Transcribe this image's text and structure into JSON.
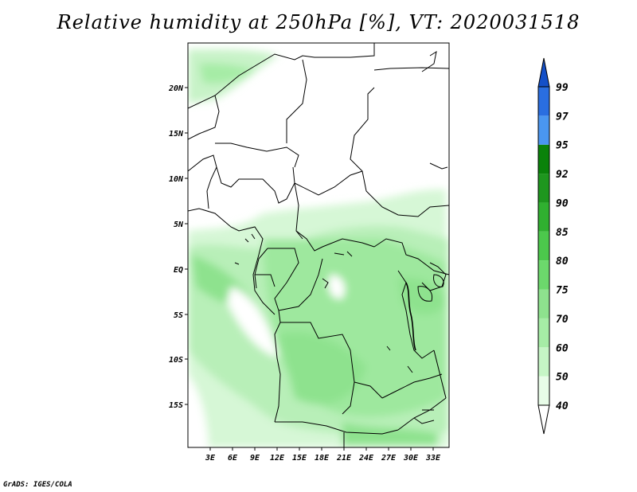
{
  "title": "Relative humidity at 250hPa [%], VT: 2020031518",
  "credit": "GrADS: IGES/COLA",
  "map": {
    "lat_ticks": [
      "20N",
      "15N",
      "10N",
      "5N",
      "EQ",
      "5S",
      "10S",
      "15S"
    ],
    "lon_ticks": [
      "3E",
      "6E",
      "9E",
      "12E",
      "15E",
      "18E",
      "21E",
      "24E",
      "27E",
      "30E",
      "33E"
    ]
  },
  "colorbar": {
    "levels": [
      "40",
      "50",
      "60",
      "70",
      "75",
      "80",
      "85",
      "90",
      "92",
      "95",
      "97",
      "99"
    ],
    "colors": [
      "#ffffff",
      "#e8fce8",
      "#c6f5c6",
      "#a6eca6",
      "#8ee28e",
      "#6cd86c",
      "#4cc84c",
      "#30b030",
      "#1e961e",
      "#0a820a",
      "#4a96f0",
      "#2a6ee0",
      "#1450c8"
    ]
  }
}
